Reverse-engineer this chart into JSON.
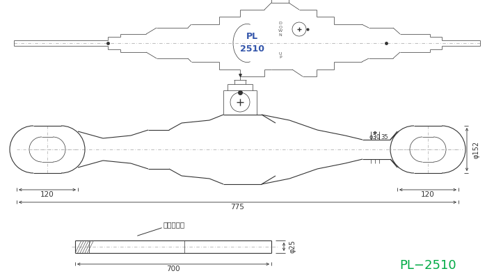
{
  "bg_color": "#ffffff",
  "line_color": "#333333",
  "green_color": "#00aa44",
  "title_text": "PL−2510",
  "label_pl": "PL",
  "label_2510": "2510",
  "dim_120_left": "120",
  "dim_120_right": "120",
  "dim_775": "775",
  "dim_30": "φ30",
  "dim_35": "35",
  "dim_152": "φ152",
  "dim_25": "φ25",
  "dim_700": "700",
  "label_handle": "ハンドル棒"
}
